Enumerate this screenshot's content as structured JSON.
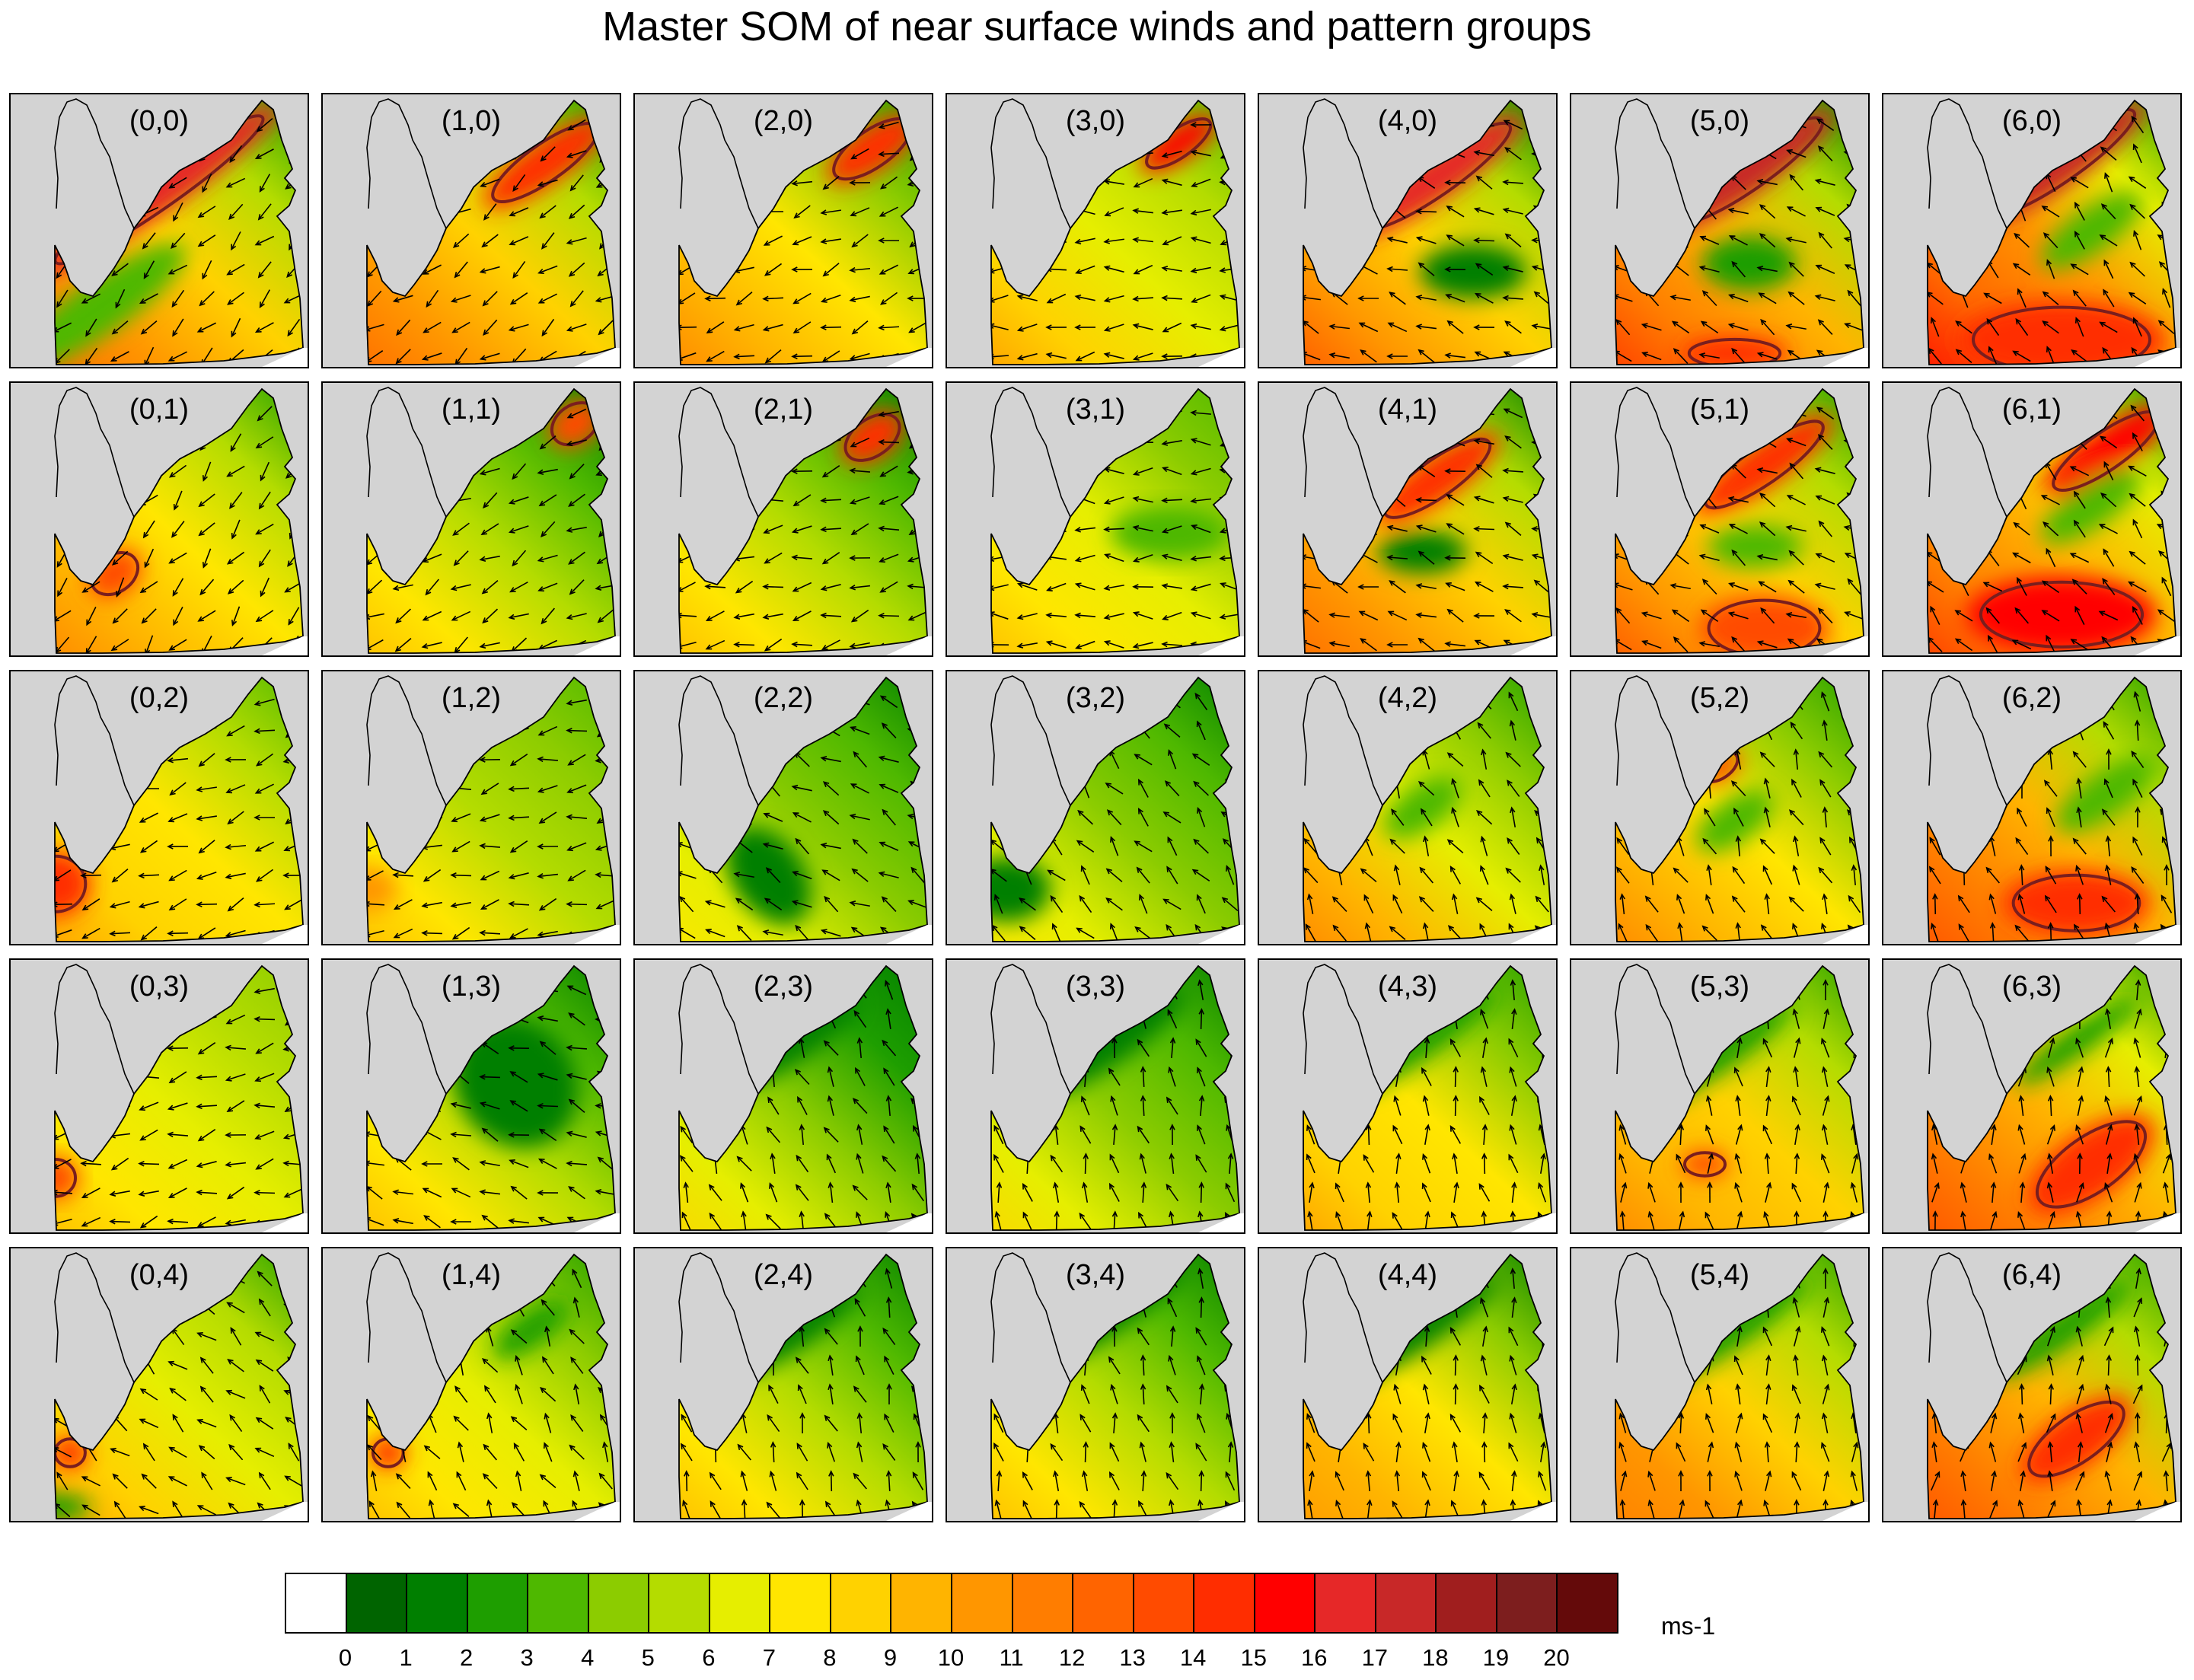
{
  "title": "Master SOM of near surface winds and pattern groups",
  "panels": [
    {
      "label": "(0,0)",
      "lvl": [
        13,
        11,
        9,
        6,
        3
      ],
      "zones": [
        [
          0.5,
          0.35,
          0.5,
          0.08,
          3,
          17
        ],
        [
          0.3,
          0.78,
          0.35,
          0.1,
          2,
          4
        ]
      ],
      "dir": 225
    },
    {
      "label": "(1,0)",
      "lvl": [
        13,
        11,
        9,
        6,
        3
      ],
      "zones": [
        [
          0.75,
          0.25,
          0.25,
          0.08,
          4,
          15
        ]
      ],
      "dir": 235
    },
    {
      "label": "(2,0)",
      "lvl": [
        12,
        10,
        8,
        5,
        3
      ],
      "zones": [
        [
          0.8,
          0.2,
          0.18,
          0.08,
          3,
          15
        ]
      ],
      "dir": 250
    },
    {
      "label": "(3,0)",
      "lvl": [
        11,
        9,
        7,
        6,
        4
      ],
      "zones": [
        [
          0.78,
          0.18,
          0.15,
          0.06,
          3,
          16
        ]
      ],
      "dir": 265
    },
    {
      "label": "(4,0)",
      "lvl": [
        14,
        11,
        9,
        6,
        2
      ],
      "zones": [
        [
          0.6,
          0.3,
          0.35,
          0.08,
          3,
          17
        ],
        [
          0.72,
          0.65,
          0.18,
          0.1,
          0,
          2
        ]
      ],
      "dir": 290
    },
    {
      "label": "(5,0)",
      "lvl": [
        15,
        12,
        10,
        6,
        2
      ],
      "zones": [
        [
          0.6,
          0.28,
          0.35,
          0.08,
          3,
          18
        ],
        [
          0.6,
          0.62,
          0.16,
          0.1,
          0,
          3
        ],
        [
          0.55,
          0.95,
          0.18,
          0.06,
          0,
          15
        ]
      ],
      "dir": 300
    },
    {
      "label": "(6,0)",
      "lvl": [
        16,
        13,
        11,
        7,
        3
      ],
      "zones": [
        [
          0.6,
          0.25,
          0.35,
          0.08,
          3,
          18
        ],
        [
          0.7,
          0.5,
          0.2,
          0.08,
          3,
          4
        ],
        [
          0.6,
          0.9,
          0.35,
          0.14,
          0,
          15
        ]
      ],
      "dir": 320
    },
    {
      "label": "(0,1)",
      "lvl": [
        12,
        10,
        8,
        6,
        3
      ],
      "zones": [
        [
          0.35,
          0.7,
          0.1,
          0.08,
          2,
          14
        ]
      ],
      "dir": 220
    },
    {
      "label": "(1,1)",
      "lvl": [
        10,
        8,
        6,
        4,
        2
      ],
      "zones": [
        [
          0.85,
          0.15,
          0.1,
          0.08,
          1,
          14
        ]
      ],
      "dir": 240
    },
    {
      "label": "(2,1)",
      "lvl": [
        10,
        8,
        6,
        4,
        2
      ],
      "zones": [
        [
          0.8,
          0.2,
          0.12,
          0.08,
          1,
          15
        ]
      ],
      "dir": 255
    },
    {
      "label": "(3,1)",
      "lvl": [
        10,
        8,
        7,
        5,
        4
      ],
      "zones": [
        [
          0.75,
          0.55,
          0.2,
          0.1,
          0,
          4
        ]
      ],
      "dir": 270
    },
    {
      "label": "(4,1)",
      "lvl": [
        13,
        11,
        9,
        6,
        2
      ],
      "zones": [
        [
          0.6,
          0.35,
          0.25,
          0.08,
          3,
          15
        ],
        [
          0.55,
          0.62,
          0.15,
          0.08,
          0,
          2
        ]
      ],
      "dir": 290
    },
    {
      "label": "(5,1)",
      "lvl": [
        14,
        11,
        9,
        6,
        3
      ],
      "zones": [
        [
          0.65,
          0.3,
          0.28,
          0.08,
          3,
          15
        ],
        [
          0.62,
          0.6,
          0.16,
          0.08,
          0,
          4
        ],
        [
          0.65,
          0.9,
          0.22,
          0.12,
          0,
          14
        ]
      ],
      "dir": 300
    },
    {
      "label": "(6,1)",
      "lvl": [
        15,
        12,
        10,
        7,
        3
      ],
      "zones": [
        [
          0.75,
          0.25,
          0.25,
          0.08,
          3,
          16
        ],
        [
          0.7,
          0.45,
          0.2,
          0.08,
          3,
          4
        ],
        [
          0.6,
          0.85,
          0.32,
          0.14,
          0,
          16
        ]
      ],
      "dir": 315
    },
    {
      "label": "(0,2)",
      "lvl": [
        11,
        9,
        8,
        6,
        4
      ],
      "zones": [
        [
          0.15,
          0.78,
          0.12,
          0.12,
          0,
          15
        ]
      ],
      "dir": 250
    },
    {
      "label": "(1,2)",
      "lvl": [
        10,
        8,
        6,
        5,
        4
      ],
      "zones": [
        [
          0.15,
          0.8,
          0.1,
          0.08,
          0,
          11
        ]
      ],
      "dir": 255
    },
    {
      "label": "(2,2)",
      "lvl": [
        8,
        7,
        5,
        4,
        2
      ],
      "zones": [
        [
          0.45,
          0.75,
          0.12,
          0.2,
          1,
          2
        ]
      ],
      "dir": 300
    },
    {
      "label": "(3,2)",
      "lvl": [
        8,
        7,
        5,
        4,
        2
      ],
      "zones": [
        [
          0.2,
          0.8,
          0.15,
          0.12,
          0,
          2
        ]
      ],
      "dir": 320
    },
    {
      "label": "(4,2)",
      "lvl": [
        12,
        10,
        7,
        5,
        3
      ],
      "zones": [
        [
          0.55,
          0.5,
          0.15,
          0.08,
          3,
          4
        ]
      ],
      "dir": 330
    },
    {
      "label": "(5,2)",
      "lvl": [
        12,
        10,
        8,
        5,
        3
      ],
      "zones": [
        [
          0.55,
          0.55,
          0.15,
          0.08,
          3,
          4
        ],
        [
          0.5,
          0.35,
          0.08,
          0.05,
          3,
          14
        ]
      ],
      "dir": 335
    },
    {
      "label": "(6,2)",
      "lvl": [
        14,
        12,
        10,
        6,
        3
      ],
      "zones": [
        [
          0.65,
          0.85,
          0.25,
          0.12,
          0,
          15
        ],
        [
          0.75,
          0.45,
          0.2,
          0.08,
          3,
          4
        ]
      ],
      "dir": 340
    },
    {
      "label": "(0,3)",
      "lvl": [
        10,
        8,
        7,
        6,
        5
      ],
      "zones": [
        [
          0.15,
          0.8,
          0.08,
          0.08,
          0,
          14
        ]
      ],
      "dir": 255
    },
    {
      "label": "(1,3)",
      "lvl": [
        10,
        8,
        6,
        4,
        2
      ],
      "zones": [
        [
          0.65,
          0.45,
          0.2,
          0.25,
          1,
          2
        ]
      ],
      "dir": 290
    },
    {
      "label": "(2,3)",
      "lvl": [
        9,
        7,
        5,
        3,
        2
      ],
      "zones": [
        [
          0.55,
          0.3,
          0.25,
          0.06,
          3,
          2
        ]
      ],
      "dir": 335
    },
    {
      "label": "(3,3)",
      "lvl": [
        9,
        7,
        5,
        4,
        2
      ],
      "zones": [
        [
          0.55,
          0.3,
          0.3,
          0.08,
          3,
          2
        ]
      ],
      "dir": 345
    },
    {
      "label": "(4,3)",
      "lvl": [
        11,
        9,
        8,
        5,
        3
      ],
      "zones": [
        [
          0.55,
          0.3,
          0.3,
          0.06,
          3,
          3
        ]
      ],
      "dir": 350
    },
    {
      "label": "(5,3)",
      "lvl": [
        12,
        10,
        9,
        6,
        3
      ],
      "zones": [
        [
          0.5,
          0.35,
          0.3,
          0.06,
          3,
          3
        ],
        [
          0.45,
          0.75,
          0.08,
          0.05,
          0,
          14
        ]
      ],
      "dir": 355
    },
    {
      "label": "(6,3)",
      "lvl": [
        14,
        12,
        10,
        7,
        3
      ],
      "zones": [
        [
          0.7,
          0.75,
          0.25,
          0.12,
          3,
          15
        ],
        [
          0.65,
          0.3,
          0.25,
          0.05,
          3,
          3
        ]
      ],
      "dir": 0
    },
    {
      "label": "(0,4)",
      "lvl": [
        11,
        9,
        7,
        6,
        3
      ],
      "zones": [
        [
          0.2,
          0.75,
          0.06,
          0.06,
          0,
          15
        ],
        [
          0.15,
          0.95,
          0.12,
          0.05,
          0,
          3
        ]
      ],
      "dir": 310
    },
    {
      "label": "(1,4)",
      "lvl": [
        10,
        8,
        7,
        5,
        3
      ],
      "zones": [
        [
          0.22,
          0.75,
          0.06,
          0.06,
          0,
          15
        ],
        [
          0.7,
          0.3,
          0.15,
          0.06,
          3,
          3
        ]
      ],
      "dir": 330
    },
    {
      "label": "(2,4)",
      "lvl": [
        10,
        8,
        6,
        4,
        2
      ],
      "zones": [
        [
          0.55,
          0.3,
          0.25,
          0.06,
          3,
          2
        ]
      ],
      "dir": 340
    },
    {
      "label": "(3,4)",
      "lvl": [
        10,
        8,
        6,
        4,
        2
      ],
      "zones": [
        [
          0.55,
          0.25,
          0.3,
          0.06,
          3,
          2
        ]
      ],
      "dir": 345
    },
    {
      "label": "(4,4)",
      "lvl": [
        11,
        10,
        8,
        5,
        2
      ],
      "zones": [
        [
          0.55,
          0.3,
          0.3,
          0.06,
          3,
          2
        ]
      ],
      "dir": 350
    },
    {
      "label": "(5,4)",
      "lvl": [
        12,
        11,
        9,
        6,
        3
      ],
      "zones": [
        [
          0.55,
          0.3,
          0.3,
          0.06,
          3,
          3
        ]
      ],
      "dir": 355
    },
    {
      "label": "(6,4)",
      "lvl": [
        14,
        12,
        10,
        6,
        3
      ],
      "zones": [
        [
          0.65,
          0.7,
          0.22,
          0.1,
          3,
          15
        ],
        [
          0.6,
          0.3,
          0.28,
          0.06,
          3,
          3
        ]
      ],
      "dir": 5
    }
  ],
  "colorbar": {
    "colors": [
      "#ffffff",
      "#006400",
      "#007f00",
      "#1e9e00",
      "#4eb800",
      "#8ccc00",
      "#b4dc00",
      "#e6ee00",
      "#ffe600",
      "#ffd200",
      "#ffb400",
      "#ff9600",
      "#ff7d00",
      "#ff6400",
      "#ff4b00",
      "#ff2d00",
      "#ff0000",
      "#e62828",
      "#c82828",
      "#a01e1e",
      "#7d1e1e",
      "#640a0a"
    ],
    "ticks": [
      "0",
      "1",
      "2",
      "3",
      "4",
      "5",
      "6",
      "7",
      "8",
      "9",
      "10",
      "11",
      "12",
      "13",
      "14",
      "15",
      "16",
      "17",
      "18",
      "19",
      "20"
    ],
    "units": "ms-1"
  }
}
